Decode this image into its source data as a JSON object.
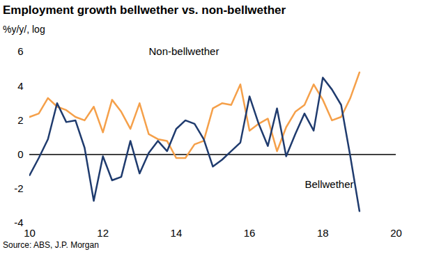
{
  "chart_data": {
    "type": "line",
    "title": "Employment growth bellwether vs. non-bellwether",
    "subtitle": "%y/y/, log",
    "caption": "Source: ABS, J.P. Morgan",
    "x": [
      10.0,
      10.25,
      10.5,
      10.75,
      11.0,
      11.25,
      11.5,
      11.75,
      12.0,
      12.25,
      12.5,
      12.75,
      13.0,
      13.25,
      13.5,
      13.75,
      14.0,
      14.25,
      14.5,
      14.75,
      15.0,
      15.25,
      15.5,
      15.75,
      16.0,
      16.25,
      16.5,
      16.75,
      17.0,
      17.25,
      17.5,
      17.75,
      18.0,
      18.25,
      18.5,
      18.75,
      19.0
    ],
    "series": [
      {
        "name": "Non-bellwether",
        "color": "#f5a04a",
        "values": [
          2.2,
          2.4,
          3.3,
          2.8,
          2.6,
          2.2,
          2.0,
          2.8,
          1.3,
          3.2,
          2.5,
          1.5,
          3.0,
          1.2,
          0.9,
          0.8,
          -0.2,
          -0.2,
          0.6,
          0.8,
          2.7,
          3.0,
          2.9,
          4.1,
          1.4,
          1.8,
          2.1,
          0.2,
          1.6,
          2.5,
          2.9,
          4.1,
          3.2,
          2.0,
          2.2,
          3.3,
          4.8
        ]
      },
      {
        "name": "Bellwether",
        "color": "#1f3b6e",
        "values": [
          -1.2,
          -0.2,
          0.9,
          3.0,
          1.9,
          2.0,
          0.4,
          -2.7,
          -0.1,
          -1.5,
          -1.3,
          0.8,
          -1.1,
          0.1,
          0.8,
          0.2,
          1.5,
          2.0,
          1.8,
          0.9,
          -0.7,
          -0.3,
          0.2,
          0.7,
          3.4,
          1.8,
          0.5,
          2.7,
          -0.1,
          1.2,
          2.4,
          1.4,
          4.5,
          3.8,
          2.9,
          -0.1,
          -3.3
        ]
      }
    ],
    "xlim": [
      10,
      20
    ],
    "xticks": [
      10,
      12,
      14,
      16,
      18,
      20
    ],
    "ylim": [
      -4,
      6
    ],
    "yticks": [
      -4,
      -2,
      0,
      2,
      4,
      6
    ]
  }
}
